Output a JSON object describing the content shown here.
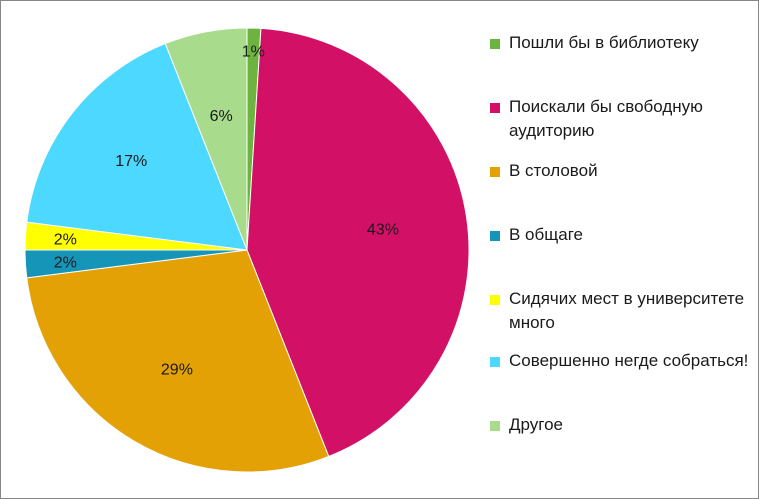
{
  "chart_data": {
    "type": "pie",
    "title": "",
    "legend_position": "right",
    "slices": [
      {
        "label": "Пошли бы в библиотеку",
        "value": 1,
        "value_label": "1%",
        "color": "#6db33f"
      },
      {
        "label": "Поискали бы свободную аудиторию",
        "value": 43,
        "value_label": "43%",
        "color": "#d11066"
      },
      {
        "label": "В столовой",
        "value": 29,
        "value_label": "29%",
        "color": "#e3a105"
      },
      {
        "label": "В общаге",
        "value": 2,
        "value_label": "2%",
        "color": "#1596b9"
      },
      {
        "label": "Сидячих мест в университете много",
        "value": 2,
        "value_label": "2%",
        "color": "#ffff00"
      },
      {
        "label": "Совершенно негде собраться!",
        "value": 17,
        "value_label": "17%",
        "color": "#4dd8ff"
      },
      {
        "label": "Другое",
        "value": 6,
        "value_label": "6%",
        "color": "#a8dc8c"
      }
    ]
  }
}
